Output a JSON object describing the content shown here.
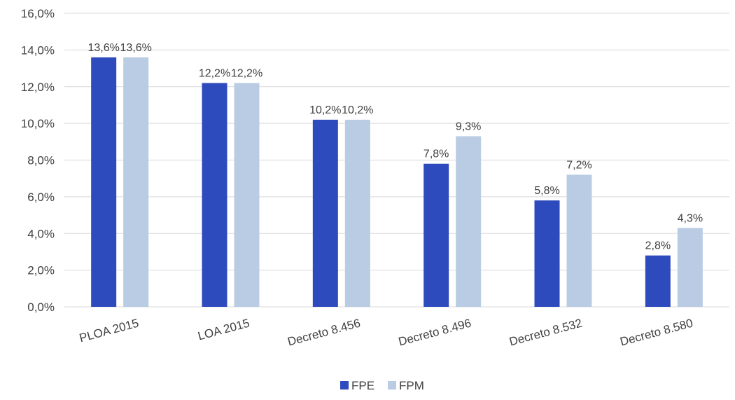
{
  "chart_data": {
    "type": "bar",
    "categories": [
      "PLOA 2015",
      "LOA 2015",
      "Decreto 8.456",
      "Decreto 8.496",
      "Decreto 8.532",
      "Decreto 8.580"
    ],
    "series": [
      {
        "name": "FPE",
        "color": "#2e4bbd",
        "values": [
          13.6,
          12.2,
          10.2,
          7.8,
          5.8,
          2.8
        ],
        "labels": [
          "13,6%",
          "12,2%",
          "10,2%",
          "7,8%",
          "5,8%",
          "2,8%"
        ]
      },
      {
        "name": "FPM",
        "color": "#b9cce4",
        "values": [
          13.6,
          12.2,
          10.2,
          9.3,
          7.2,
          4.3
        ],
        "labels": [
          "13,6%",
          "12,2%",
          "10,2%",
          "9,3%",
          "7,2%",
          "4,3%"
        ]
      }
    ],
    "ylim": [
      0,
      16
    ],
    "yticks": [
      0,
      2,
      4,
      6,
      8,
      10,
      12,
      14,
      16
    ],
    "ytick_labels": [
      "0,0%",
      "2,0%",
      "4,0%",
      "6,0%",
      "8,0%",
      "10,0%",
      "12,0%",
      "14,0%",
      "16,0%"
    ],
    "grid": true,
    "legend_position": "bottom-center",
    "gridline_color": "#d9d9d9",
    "title": "",
    "xlabel": "",
    "ylabel": ""
  }
}
